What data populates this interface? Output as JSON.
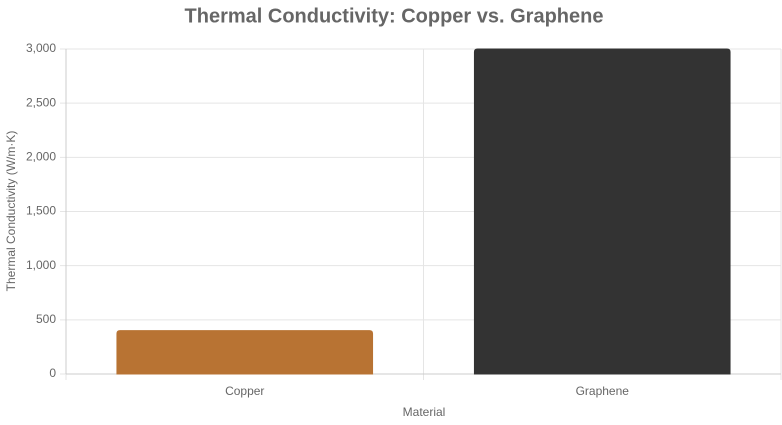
{
  "chart_data": {
    "type": "bar",
    "title": "Thermal Conductivity: Copper vs. Graphene",
    "x_label": "Material",
    "y_label": "Thermal Conductivity (W/m·K)",
    "categories": [
      "Copper",
      "Graphene"
    ],
    "values": [
      400,
      3000
    ],
    "colors": [
      "#b87333",
      "#333333"
    ],
    "ylim": [
      0,
      3000
    ],
    "yticks": [
      0,
      500,
      {
        "value": 1000,
        "label": "1,000"
      },
      {
        "value": 1500,
        "label": "1,500"
      },
      {
        "value": 2000,
        "label": "2,000"
      },
      {
        "value": 2500,
        "label": "2,500"
      },
      {
        "value": 3000,
        "label": "3,000"
      }
    ],
    "grid": true
  }
}
